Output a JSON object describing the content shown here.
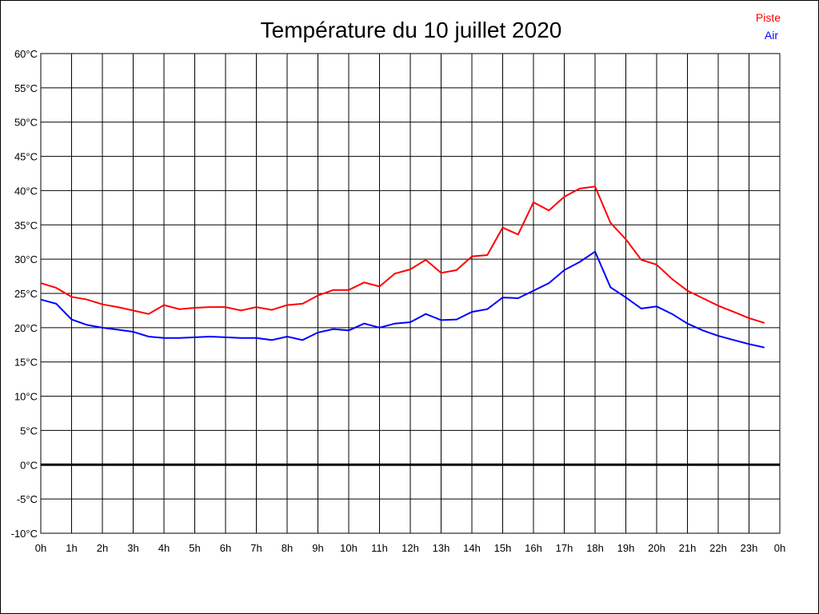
{
  "chart_data": {
    "type": "line",
    "title": "Température du 10 juillet 2020",
    "xlabel": "",
    "ylabel": "",
    "xlim": [
      0,
      24
    ],
    "ylim": [
      -10,
      60
    ],
    "grid": true,
    "legend_placement": "top-right",
    "y_ticks": [
      "60°C",
      "55°C",
      "50°C",
      "45°C",
      "40°C",
      "35°C",
      "30°C",
      "25°C",
      "20°C",
      "15°C",
      "10°C",
      "5°C",
      "0°C",
      "-5°C",
      "-10°C"
    ],
    "x_ticks": [
      "0h",
      "1h",
      "2h",
      "3h",
      "4h",
      "5h",
      "6h",
      "7h",
      "8h",
      "9h",
      "10h",
      "11h",
      "12h",
      "13h",
      "14h",
      "15h",
      "16h",
      "17h",
      "18h",
      "19h",
      "20h",
      "21h",
      "22h",
      "23h",
      "0h"
    ],
    "x": [
      0,
      0.5,
      1,
      1.5,
      2,
      2.5,
      3,
      3.5,
      4,
      4.5,
      5,
      5.5,
      6,
      6.5,
      7,
      7.5,
      8,
      8.5,
      9,
      9.5,
      10,
      10.5,
      11,
      11.5,
      12,
      12.5,
      13,
      13.5,
      14,
      14.5,
      15,
      15.5,
      16,
      16.5,
      17,
      17.5,
      18,
      18.5,
      19,
      19.5,
      20,
      20.5,
      21,
      21.5,
      22,
      22.5,
      23,
      23.5
    ],
    "series": [
      {
        "name": "Piste",
        "color": "#ff0000",
        "values": [
          26.5,
          25.8,
          24.5,
          24.1,
          23.4,
          23.0,
          22.5,
          22.0,
          23.3,
          22.7,
          22.9,
          23.0,
          23.0,
          22.5,
          23.0,
          22.6,
          23.3,
          23.5,
          24.7,
          25.5,
          25.5,
          26.6,
          26.0,
          27.9,
          28.5,
          29.9,
          28.0,
          28.4,
          30.4,
          30.6,
          34.6,
          33.6,
          38.3,
          37.1,
          39.1,
          40.3,
          40.6,
          35.3,
          32.9,
          29.9,
          29.2,
          27.1,
          25.4,
          24.3,
          23.2,
          22.3,
          21.4,
          20.7
        ]
      },
      {
        "name": "Air",
        "color": "#0000ff",
        "values": [
          24.1,
          23.5,
          21.2,
          20.4,
          20.0,
          19.7,
          19.4,
          18.7,
          18.5,
          18.5,
          18.6,
          18.7,
          18.6,
          18.5,
          18.5,
          18.2,
          18.7,
          18.2,
          19.3,
          19.8,
          19.6,
          20.6,
          20.0,
          20.6,
          20.8,
          22.0,
          21.1,
          21.2,
          22.3,
          22.7,
          24.4,
          24.3,
          25.4,
          26.5,
          28.4,
          29.6,
          31.1,
          25.9,
          24.4,
          22.8,
          23.1,
          22.0,
          20.6,
          19.6,
          18.8,
          18.2,
          17.6,
          17.1
        ]
      }
    ]
  }
}
